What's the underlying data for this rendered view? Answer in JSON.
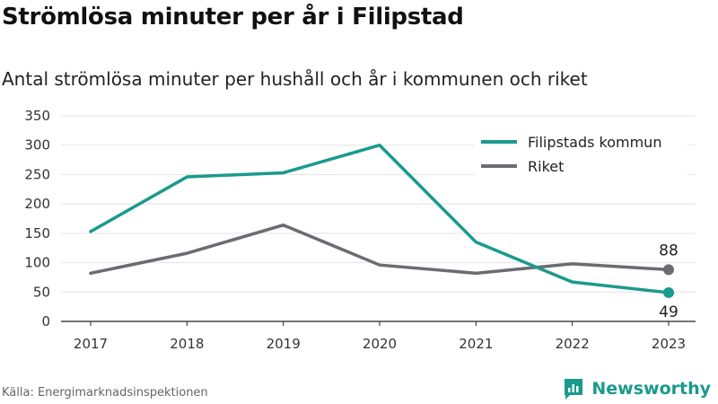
{
  "title": "Strömlösa minuter per år i Filipstad",
  "subtitle": "Antal strömlösa minuter per hushåll och år i kommunen och riket",
  "source": "Källa: Energimarknadsinspektionen",
  "brand": "Newsworthy",
  "chart_data": {
    "type": "line",
    "x": [
      "2017",
      "2018",
      "2019",
      "2020",
      "2021",
      "2022",
      "2023"
    ],
    "ylim": [
      0,
      350
    ],
    "yticks": [
      0,
      50,
      100,
      150,
      200,
      250,
      300,
      350
    ],
    "grid": true,
    "legend_position": "top-right",
    "series": [
      {
        "name": "Filipstads kommun",
        "color": "#1a9a8d",
        "values": [
          153,
          246,
          253,
          300,
          135,
          67,
          49
        ],
        "end_label": "49"
      },
      {
        "name": "Riket",
        "color": "#6b6b73",
        "values": [
          82,
          116,
          164,
          96,
          82,
          98,
          88
        ],
        "end_label": "88"
      }
    ]
  }
}
